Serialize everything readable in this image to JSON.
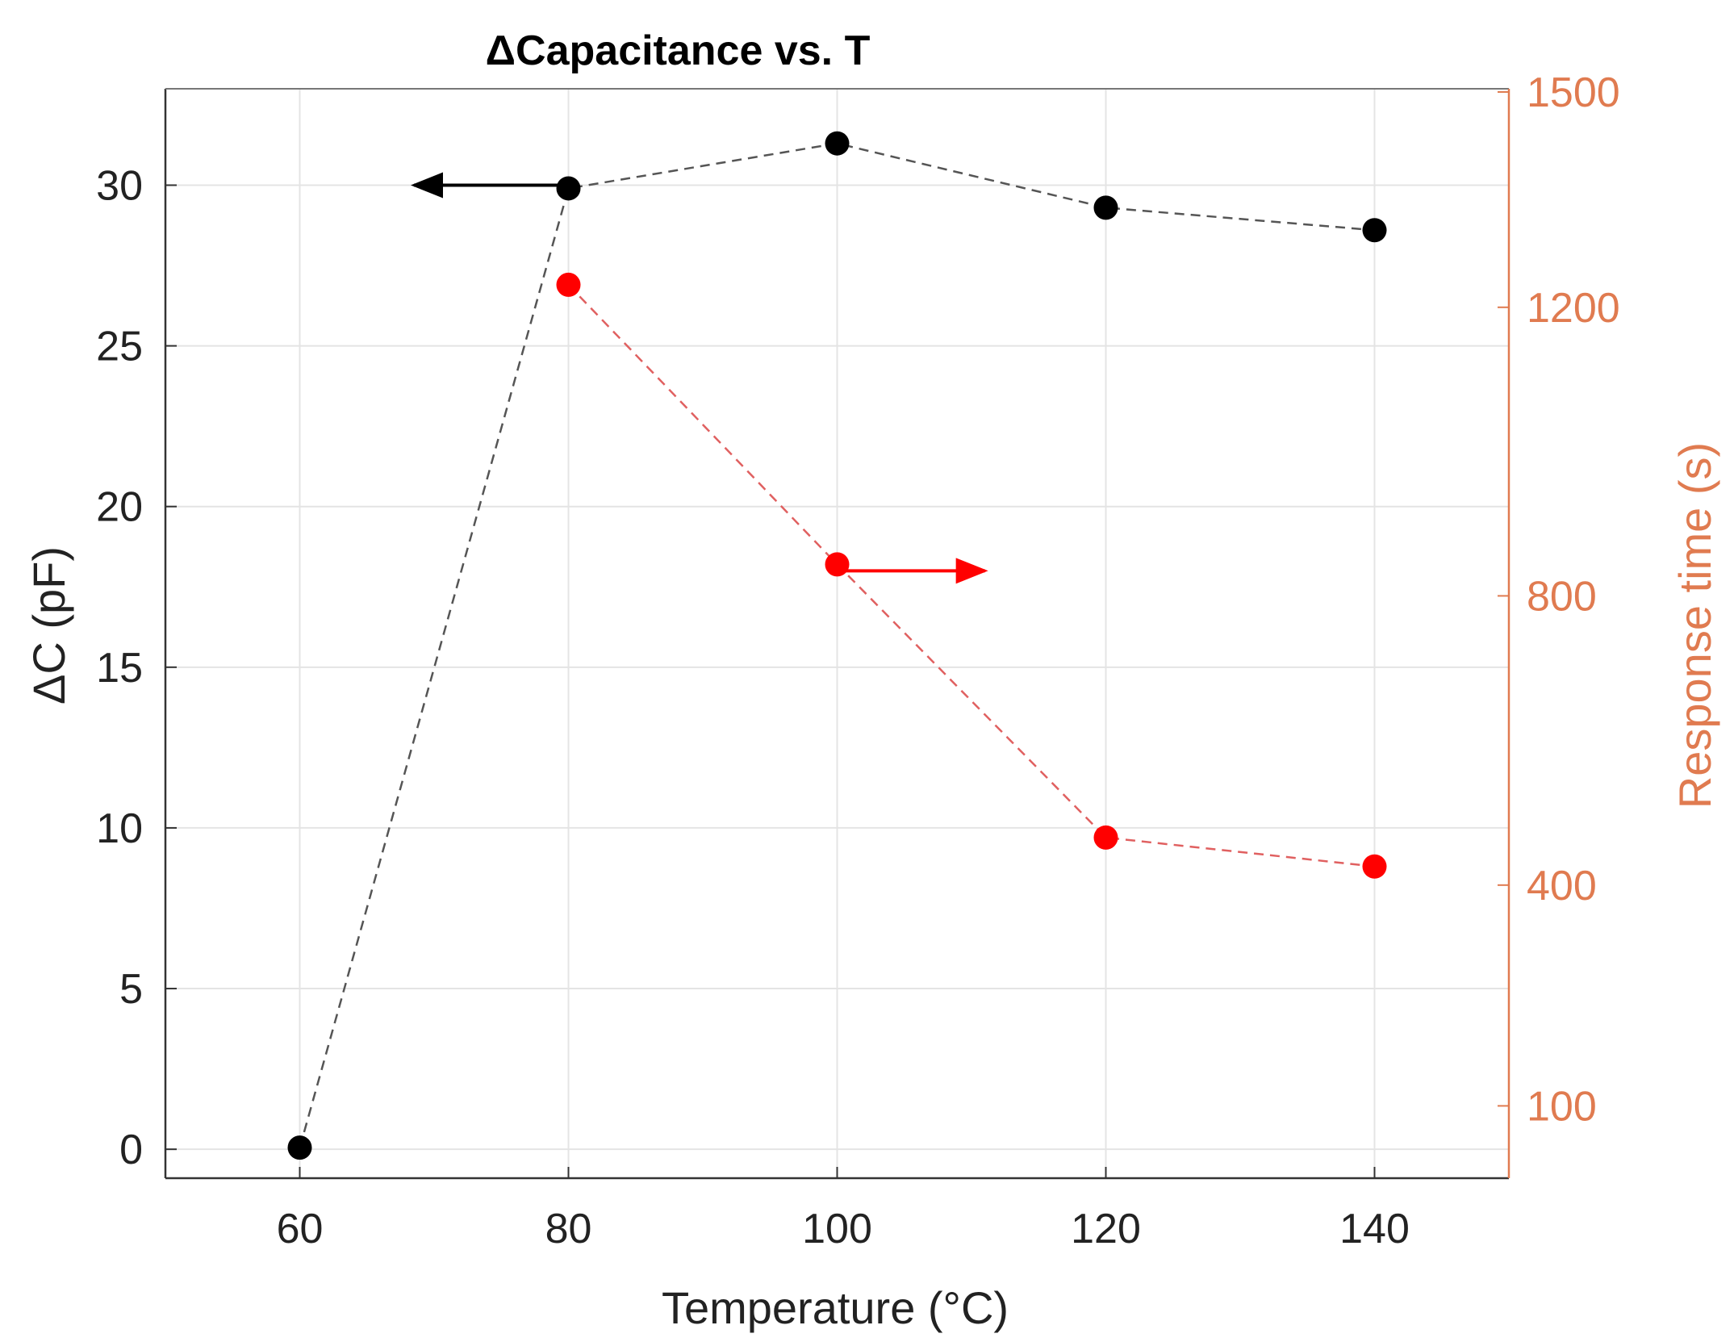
{
  "chart_data": {
    "type": "line",
    "title": "ΔCapacitance vs. T",
    "xlabel": "Temperature (°C)",
    "ylabel_left": "ΔC (pF)",
    "ylabel_right": "Response time (s)",
    "xlim": [
      50,
      150
    ],
    "xticks": [
      60,
      80,
      100,
      120,
      140
    ],
    "ylim_left": [
      -0.9,
      33
    ],
    "yticks_left": [
      0,
      5,
      10,
      15,
      20,
      25,
      30
    ],
    "yticks_right_labels": [
      "100",
      "400",
      "800",
      "1200",
      "1500"
    ],
    "yticks_right_positions_left_units": [
      1.35,
      8.22,
      17.22,
      26.2,
      32.9
    ],
    "grid": true,
    "series": [
      {
        "name": "ΔC",
        "axis": "left",
        "color": "#000000",
        "x": [
          60,
          80,
          100,
          120,
          140
        ],
        "y": [
          0.05,
          29.9,
          31.3,
          29.3,
          28.6
        ]
      },
      {
        "name": "Response time",
        "axis": "right",
        "color": "#ff0000",
        "x": [
          80,
          100,
          120,
          140
        ],
        "y_right_labels_equiv": [
          1230,
          850,
          480,
          440
        ],
        "y_in_left_units": [
          26.9,
          18.2,
          9.7,
          8.8
        ]
      }
    ],
    "annotations": [
      {
        "type": "arrow",
        "direction": "left",
        "color": "#000000",
        "from_x": 80,
        "to_x": 68.5,
        "y": 30.0,
        "axis": "left"
      },
      {
        "type": "arrow",
        "direction": "right",
        "color": "#ff0000",
        "from_x": 100,
        "to_x": 111,
        "y": 18.0,
        "axis": "left"
      }
    ],
    "colors": {
      "left_axis": "#000000",
      "right_axis": "#e07b50",
      "grid": "#e4e4e4",
      "box": "#555555"
    }
  }
}
